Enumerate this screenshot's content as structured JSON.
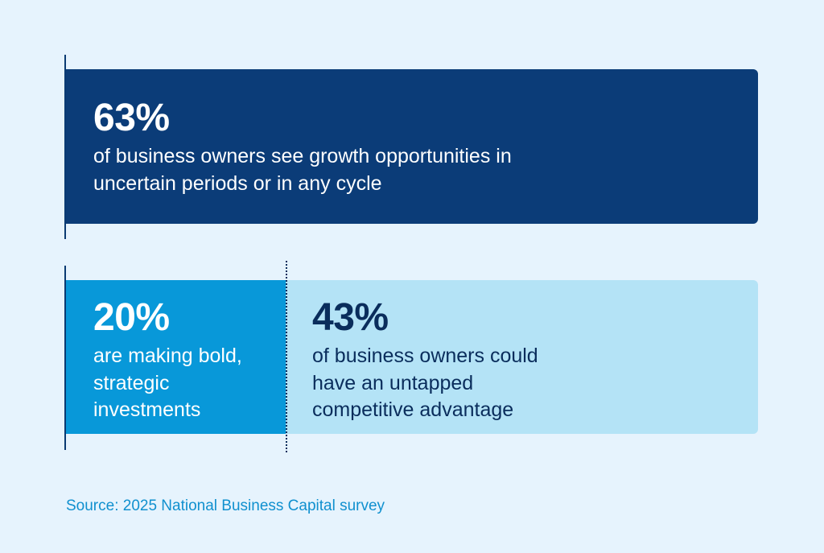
{
  "colors": {
    "background": "#e6f3fd",
    "dark_navy": "#0b3c78",
    "bright_blue": "#0898d9",
    "light_blue": "#b4e3f6",
    "source_text": "#1090cf"
  },
  "chart_data": {
    "type": "bar",
    "title": "",
    "xlabel": "",
    "ylabel": "",
    "xlim": [
      0,
      100
    ],
    "grid": false,
    "series": [
      {
        "value": 63,
        "label": "63%",
        "description": "of business owners see growth opportunities in uncertain periods or in any cycle",
        "color": "#0b3c78"
      },
      {
        "value": 20,
        "label": "20%",
        "description": "are making bold, strategic investments",
        "color": "#0898d9"
      },
      {
        "value": 43,
        "label": "43%",
        "description": "of business owners could have an untapped competitive advantage",
        "color": "#b4e3f6"
      }
    ],
    "source": "Source: 2025 National Business Capital survey"
  }
}
